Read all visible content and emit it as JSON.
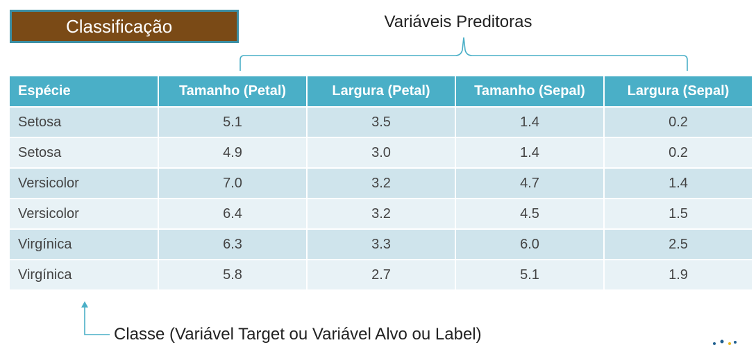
{
  "slide_title": "Classificação",
  "predictors_title": "Variáveis Preditoras",
  "table": {
    "headers": [
      "Espécie",
      "Tamanho (Petal)",
      "Largura (Petal)",
      "Tamanho (Sepal)",
      "Largura (Sepal)"
    ],
    "rows": [
      [
        "Setosa",
        "5.1",
        "3.5",
        "1.4",
        "0.2"
      ],
      [
        "Setosa",
        "4.9",
        "3.0",
        "1.4",
        "0.2"
      ],
      [
        "Versicolor",
        "7.0",
        "3.2",
        "4.7",
        "1.4"
      ],
      [
        "Versicolor",
        "6.4",
        "3.2",
        "4.5",
        "1.5"
      ],
      [
        "Virgínica",
        "6.3",
        "3.3",
        "6.0",
        "2.5"
      ],
      [
        "Virgínica",
        "5.8",
        "2.7",
        "5.1",
        "1.9"
      ]
    ]
  },
  "class_label": "Classe (Variável Target ou Variável Alvo ou Label)",
  "colors": {
    "title_box": "#7a4a16",
    "title_border": "#3c8fa4",
    "header": "#4aafc7",
    "row_odd": "#cfe4ec",
    "row_even": "#e8f2f6",
    "annotation_line": "#4aafc7"
  },
  "icons": {
    "brace": "curly-brace",
    "pointer": "arrow-up"
  }
}
